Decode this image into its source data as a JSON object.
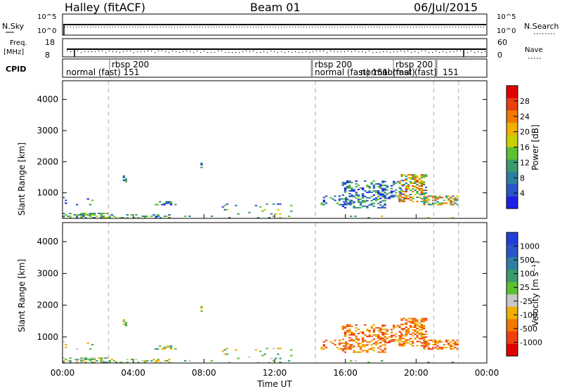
{
  "header": {
    "station": "Halley (fitACF)",
    "beam": "Beam 01",
    "date": "06/Jul/2015"
  },
  "top_panels": {
    "nsky_label": "N.Sky",
    "nsearch_label": "N.Search",
    "freq_label_1": "Freq.",
    "freq_label_2": "[MHz]",
    "nave_label": "Nave",
    "cpid_label": "CPID",
    "noise_ticks": [
      "10^5",
      "10^0"
    ],
    "noise_ticks_right": [
      "10^5",
      "10^0"
    ],
    "freq_ticks": [
      "18",
      "8"
    ],
    "nave_ticks": [
      "60",
      "0"
    ]
  },
  "cpid": {
    "segments": [
      {
        "start": 0.25,
        "program": "normal (fast) 151",
        "id": "rbsp 200"
      },
      {
        "start": 14.3,
        "program": "normal (fast) 151",
        "id": "rbsp 200"
      },
      {
        "start": 17.6,
        "program": "normal (fast)",
        "id": ""
      },
      {
        "start": 18.6,
        "program": "normal (fast)",
        "id": ""
      },
      {
        "start": 19.8,
        "program": "normal (fast)",
        "id": "rbsp 200"
      },
      {
        "start": 21.0,
        "program": "151",
        "id": ""
      }
    ],
    "labels": {
      "rbsp1": "rbsp 200",
      "normal1": "normal (fast) 151",
      "rbsp2": "rbsp 200",
      "normal2": "normal (fast) 151",
      "normal3": "normal (fast)",
      "rbsp3": "rbsp 200",
      "normal4": "normal (fast)",
      "id151": "151"
    }
  },
  "colors": {
    "power": [
      "#1f1fe8",
      "#2a54c8",
      "#2f7fa0",
      "#3a9a6a",
      "#5cc030",
      "#c8d000",
      "#f0b000",
      "#f07800",
      "#e84010",
      "#e00000"
    ],
    "velocity": [
      "#e00000",
      "#f04010",
      "#f07800",
      "#f0b000",
      "#c8c8c8",
      "#5cc030",
      "#3a9a6a",
      "#2f7fa0",
      "#2a54c8",
      "#1f3fd8"
    ]
  },
  "chart_data": [
    {
      "type": "heatmap",
      "name": "power",
      "xlabel": "",
      "ylabel": "Slant Range [km]",
      "xlim": [
        0,
        24
      ],
      "ylim": [
        180,
        4600
      ],
      "yticks": [
        1000,
        2000,
        3000,
        4000
      ],
      "colorbar_label": "Power [dB]",
      "colorbar_ticks": [
        "4",
        "8",
        "12",
        "16",
        "20",
        "24",
        "28"
      ],
      "colorbar_range": [
        0,
        30
      ],
      "dashed_lines_hours": [
        2.6,
        14.3,
        21.0,
        22.4
      ]
    },
    {
      "type": "heatmap",
      "name": "velocity",
      "xlabel": "Time UT",
      "ylabel": "Slant Range [km]",
      "xlim": [
        0,
        24
      ],
      "ylim": [
        180,
        4600
      ],
      "yticks": [
        1000,
        2000,
        3000,
        4000
      ],
      "xticks": [
        "00:00",
        "04:00",
        "08:00",
        "12:00",
        "16:00",
        "20:00",
        "00:00"
      ],
      "colorbar_label": "Velocity [m s⁻¹]",
      "colorbar_ticks": [
        "-1000",
        "-500",
        "-100",
        "-25",
        "25",
        "100",
        "500",
        "1000"
      ],
      "dashed_lines_hours": [
        2.6,
        14.3,
        21.0,
        22.4
      ]
    }
  ]
}
